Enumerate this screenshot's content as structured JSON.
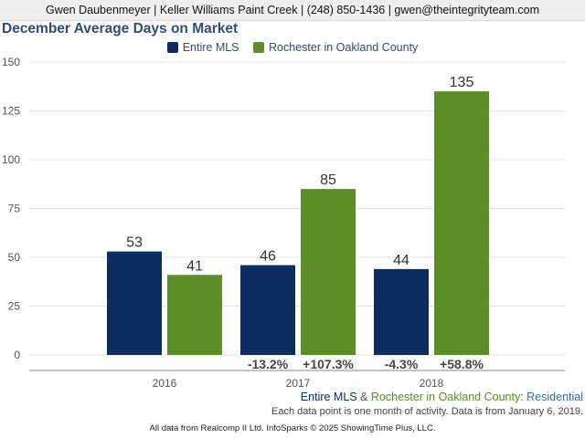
{
  "header": {
    "text": "Gwen Daubenmeyer | Keller Williams Paint Creek | (248) 850-1436 | gwen@theintegrityteam.com"
  },
  "chart_data": {
    "type": "bar",
    "title": "December Average Days on Market",
    "categories": [
      "2016",
      "2017",
      "2018"
    ],
    "series": [
      {
        "name": "Entire MLS",
        "color": "#0b2d60",
        "values": [
          53,
          46,
          44
        ]
      },
      {
        "name": "Rochester in Oakland County",
        "color": "#5c8d28",
        "values": [
          41,
          85,
          135
        ]
      }
    ],
    "change_labels": [
      [
        "",
        ""
      ],
      [
        "-13.2%",
        "+107.3%"
      ],
      [
        "-4.3%",
        "+58.8%"
      ]
    ],
    "ylim": [
      0,
      150
    ],
    "yticks": [
      0,
      25,
      50,
      75,
      100,
      125,
      150
    ],
    "grid": true,
    "legend": "top-center"
  },
  "subtitle": {
    "series_a": "Entire MLS",
    "amp": " & ",
    "series_b": "Rochester in Oakland County",
    "colon": ": ",
    "type": "Residential",
    "colors": {
      "series_a": "#0b2d60",
      "series_b": "#5c8d28",
      "type": "#3a6ea5"
    }
  },
  "note": "Each data point is one month of activity. Data is from January 6, 2019.",
  "footer": "All data from Realcomp II Ltd. InfoSparks © 2025 ShowingTime Plus, LLC."
}
